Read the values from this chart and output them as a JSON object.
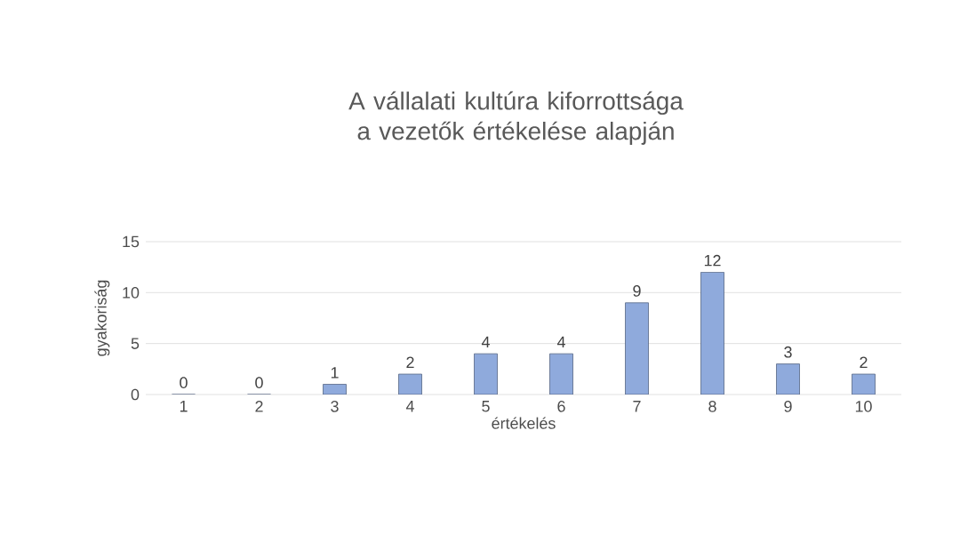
{
  "chart_data": {
    "type": "bar",
    "title": "A vállalati kultúra kiforrottsága a vezetők értékelése alapján",
    "xlabel": "értékelés",
    "ylabel": "gyakoriság",
    "categories": [
      "1",
      "2",
      "3",
      "4",
      "5",
      "6",
      "7",
      "8",
      "9",
      "10"
    ],
    "values": [
      0,
      0,
      1,
      2,
      4,
      4,
      9,
      12,
      3,
      2
    ],
    "color": "#8faadc",
    "ylim": [
      0,
      15
    ],
    "yticks": [
      0,
      5,
      10,
      15
    ],
    "grid": "y",
    "data_labels": true
  }
}
